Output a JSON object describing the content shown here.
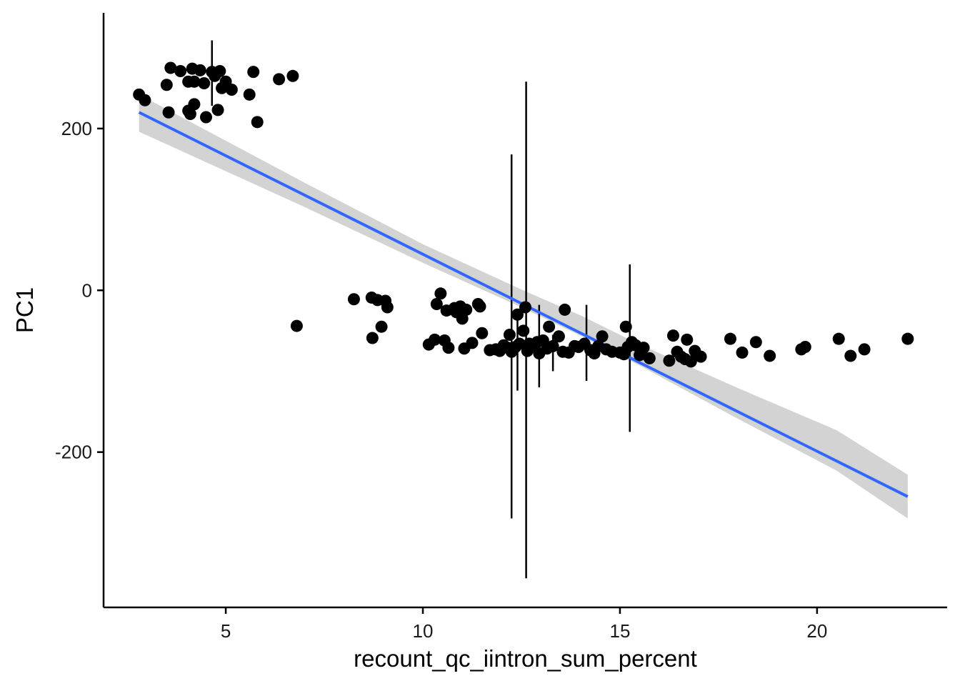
{
  "chart_data": {
    "type": "scatter",
    "title": "",
    "xlabel": "recount_qc_iintron_sum_percent",
    "ylabel": "PC1",
    "xlim": [
      1.9,
      23.3
    ],
    "ylim": [
      -392,
      343
    ],
    "x_ticks": [
      5,
      10,
      15,
      20
    ],
    "y_ticks": [
      200,
      0,
      -200
    ],
    "x_tick_labels": [
      "5",
      "10",
      "15",
      "20"
    ],
    "y_tick_labels": [
      "200",
      "0",
      "-200"
    ],
    "grid": false,
    "legend": "none",
    "colors": {
      "points": "#000000",
      "fit_line": "#3366FF",
      "confidence_band": "#D3D3D3",
      "axis": "#000000"
    },
    "points": [
      [
        2.8,
        242
      ],
      [
        2.95,
        235
      ],
      [
        3.5,
        254
      ],
      [
        3.55,
        220
      ],
      [
        3.6,
        275
      ],
      [
        3.85,
        271
      ],
      [
        4.05,
        258
      ],
      [
        4.05,
        222
      ],
      [
        4.1,
        218
      ],
      [
        4.15,
        274
      ],
      [
        4.2,
        230
      ],
      [
        4.2,
        258
      ],
      [
        4.35,
        272
      ],
      [
        4.45,
        256
      ],
      [
        4.5,
        214
      ],
      [
        4.65,
        270
      ],
      [
        4.72,
        265
      ],
      [
        4.8,
        223
      ],
      [
        4.85,
        271
      ],
      [
        4.9,
        250
      ],
      [
        5.0,
        258
      ],
      [
        5.15,
        248
      ],
      [
        5.6,
        242
      ],
      [
        5.7,
        270
      ],
      [
        5.8,
        208
      ],
      [
        6.35,
        261
      ],
      [
        6.7,
        265
      ],
      [
        6.8,
        -44
      ],
      [
        8.25,
        -11
      ],
      [
        8.7,
        -9
      ],
      [
        8.72,
        -59
      ],
      [
        8.85,
        -12
      ],
      [
        8.95,
        -45
      ],
      [
        9.05,
        -13
      ],
      [
        9.1,
        -21
      ],
      [
        10.15,
        -67
      ],
      [
        10.3,
        -61
      ],
      [
        10.35,
        -17
      ],
      [
        10.45,
        -4
      ],
      [
        10.55,
        -62
      ],
      [
        10.6,
        -25
      ],
      [
        10.65,
        -71
      ],
      [
        10.8,
        -22
      ],
      [
        10.85,
        -27
      ],
      [
        10.95,
        -20
      ],
      [
        11.0,
        -35
      ],
      [
        11.05,
        -72
      ],
      [
        11.1,
        -24
      ],
      [
        11.25,
        -65
      ],
      [
        11.4,
        -17
      ],
      [
        11.45,
        -20
      ],
      [
        11.5,
        -53
      ],
      [
        11.7,
        -74
      ],
      [
        11.85,
        -73
      ],
      [
        11.95,
        -75
      ],
      [
        12.05,
        -68
      ],
      [
        12.15,
        -71
      ],
      [
        12.2,
        -55
      ],
      [
        12.25,
        -76
      ],
      [
        12.35,
        -70
      ],
      [
        12.4,
        -30
      ],
      [
        12.45,
        -66
      ],
      [
        12.55,
        -50
      ],
      [
        12.6,
        -21
      ],
      [
        12.65,
        -75
      ],
      [
        12.7,
        -66
      ],
      [
        12.8,
        -68
      ],
      [
        12.9,
        -64
      ],
      [
        12.95,
        -78
      ],
      [
        13.05,
        -62
      ],
      [
        13.15,
        -72
      ],
      [
        13.2,
        -45
      ],
      [
        13.3,
        -69
      ],
      [
        13.45,
        -57
      ],
      [
        13.55,
        -76
      ],
      [
        13.6,
        -24
      ],
      [
        13.7,
        -77
      ],
      [
        13.85,
        -69
      ],
      [
        13.95,
        -70
      ],
      [
        14.1,
        -66
      ],
      [
        14.25,
        -74
      ],
      [
        14.35,
        -78
      ],
      [
        14.45,
        -69
      ],
      [
        14.55,
        -57
      ],
      [
        14.65,
        -73
      ],
      [
        14.8,
        -76
      ],
      [
        15.0,
        -77
      ],
      [
        15.1,
        -79
      ],
      [
        15.15,
        -45
      ],
      [
        15.2,
        -70
      ],
      [
        15.3,
        -64
      ],
      [
        15.4,
        -68
      ],
      [
        15.5,
        -80
      ],
      [
        15.6,
        -71
      ],
      [
        15.75,
        -84
      ],
      [
        16.25,
        -87
      ],
      [
        16.35,
        -56
      ],
      [
        16.45,
        -76
      ],
      [
        16.55,
        -82
      ],
      [
        16.65,
        -85
      ],
      [
        16.7,
        -61
      ],
      [
        16.8,
        -88
      ],
      [
        16.9,
        -75
      ],
      [
        17.05,
        -82
      ],
      [
        17.8,
        -60
      ],
      [
        18.1,
        -77
      ],
      [
        18.45,
        -64
      ],
      [
        18.8,
        -81
      ],
      [
        19.6,
        -73
      ],
      [
        19.7,
        -70
      ],
      [
        20.55,
        -60
      ],
      [
        20.85,
        -81
      ],
      [
        21.2,
        -73
      ],
      [
        22.3,
        -60
      ]
    ],
    "error_bars": [
      [
        4.65,
        309,
        228
      ],
      [
        12.25,
        168,
        -282
      ],
      [
        12.4,
        -36,
        -124
      ],
      [
        12.62,
        258,
        -356
      ],
      [
        12.95,
        -18,
        -120
      ],
      [
        13.3,
        -55,
        -100
      ],
      [
        14.15,
        -18,
        -112
      ],
      [
        15.25,
        32,
        -175
      ]
    ],
    "fit_line": {
      "x": [
        2.8,
        22.3
      ],
      "y": [
        220,
        -255
      ]
    },
    "confidence_band": {
      "x": [
        2.8,
        7.0,
        10.0,
        12.5,
        14.0,
        15.5,
        18.0,
        20.5,
        22.3
      ],
      "lower": [
        196,
        103,
        34,
        -21,
        -56,
        -93,
        -159,
        -223,
        -282
      ],
      "upper": [
        242,
        133,
        57,
        1,
        -31,
        -67,
        -121,
        -173,
        -228
      ]
    }
  }
}
